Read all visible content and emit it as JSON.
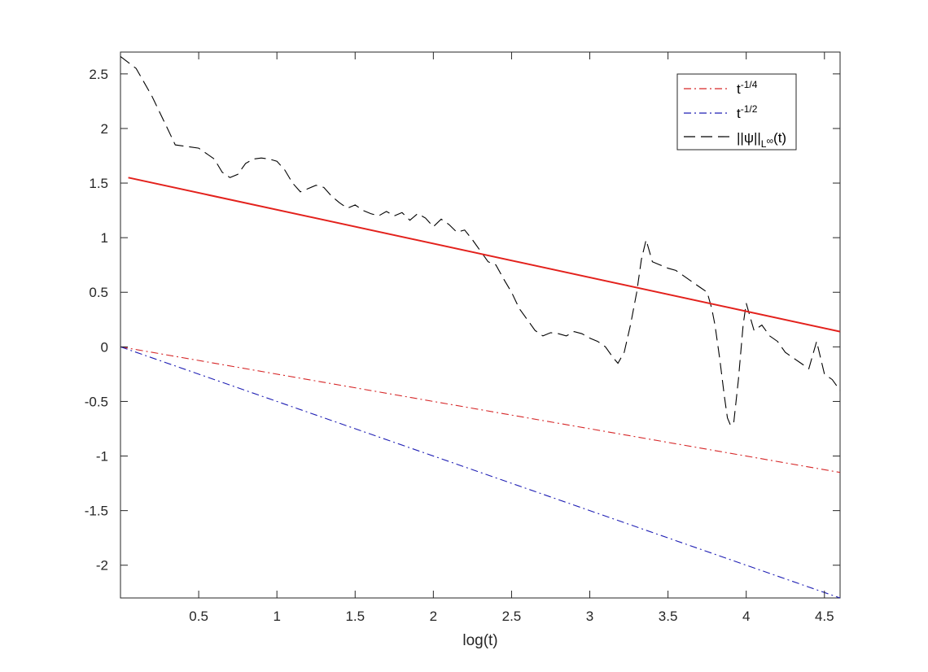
{
  "chart_data": {
    "type": "line",
    "title": "",
    "xlabel": "log(t)",
    "ylabel": "",
    "xlim": [
      0.0,
      4.6
    ],
    "ylim": [
      -2.3,
      2.7
    ],
    "grid": false,
    "legend_position": "top-right",
    "xticks": [
      "0.5",
      "1",
      "1.5",
      "2",
      "2.5",
      "3",
      "3.5",
      "4",
      "4.5"
    ],
    "yticks": [
      "2.5",
      "2",
      "1.5",
      "1",
      "0.5",
      "0",
      "-0.5",
      "-1",
      "-1.5",
      "-2"
    ],
    "legend": [
      {
        "base": "t",
        "sup": "-1/4",
        "color": "#d62728",
        "style": "dash-dot"
      },
      {
        "base": "t",
        "sup": "-1/2",
        "color": "#1f1fb4",
        "style": "dash-dot"
      },
      {
        "base": "||ψ||",
        "sub": "L",
        "sup": "∞",
        "suffix": "(t)",
        "color": "#000000",
        "style": "dashed"
      }
    ],
    "series": [
      {
        "color": "#d62728",
        "style": "dash-dot",
        "x": [
          0.0,
          4.6
        ],
        "y": [
          0.0,
          -1.15
        ]
      },
      {
        "color": "#1f1fb4",
        "style": "dash-dot",
        "x": [
          0.0,
          4.6
        ],
        "y": [
          0.0,
          -2.3
        ]
      },
      {
        "color": "#000000",
        "style": "dashed",
        "x": [
          0.0,
          0.1,
          0.2,
          0.3,
          0.35,
          0.4,
          0.5,
          0.6,
          0.65,
          0.7,
          0.75,
          0.8,
          0.85,
          0.9,
          0.95,
          1.0,
          1.05,
          1.1,
          1.15,
          1.2,
          1.25,
          1.3,
          1.35,
          1.4,
          1.45,
          1.5,
          1.55,
          1.6,
          1.65,
          1.7,
          1.75,
          1.8,
          1.85,
          1.9,
          1.95,
          2.0,
          2.05,
          2.1,
          2.15,
          2.2,
          2.25,
          2.3,
          2.35,
          2.4,
          2.45,
          2.5,
          2.55,
          2.6,
          2.65,
          2.7,
          2.75,
          2.8,
          2.85,
          2.9,
          2.95,
          3.0,
          3.05,
          3.1,
          3.15,
          3.18,
          3.22,
          3.26,
          3.3,
          3.33,
          3.36,
          3.4,
          3.45,
          3.5,
          3.55,
          3.6,
          3.65,
          3.7,
          3.75,
          3.78,
          3.8,
          3.83,
          3.86,
          3.88,
          3.9,
          3.92,
          3.95,
          3.98,
          4.0,
          4.02,
          4.05,
          4.1,
          4.15,
          4.2,
          4.25,
          4.3,
          4.35,
          4.4,
          4.45,
          4.5,
          4.55,
          4.6
        ],
        "y": [
          2.66,
          2.55,
          2.3,
          2.0,
          1.85,
          1.84,
          1.82,
          1.72,
          1.6,
          1.55,
          1.58,
          1.68,
          1.72,
          1.73,
          1.72,
          1.7,
          1.62,
          1.5,
          1.42,
          1.45,
          1.48,
          1.46,
          1.38,
          1.32,
          1.27,
          1.3,
          1.25,
          1.22,
          1.2,
          1.24,
          1.2,
          1.23,
          1.16,
          1.22,
          1.18,
          1.1,
          1.17,
          1.12,
          1.05,
          1.07,
          0.98,
          0.88,
          0.78,
          0.75,
          0.62,
          0.5,
          0.35,
          0.25,
          0.15,
          0.1,
          0.13,
          0.12,
          0.1,
          0.14,
          0.12,
          0.08,
          0.05,
          0.0,
          -0.1,
          -0.15,
          -0.05,
          0.2,
          0.5,
          0.8,
          0.98,
          0.78,
          0.75,
          0.72,
          0.7,
          0.65,
          0.6,
          0.55,
          0.5,
          0.35,
          0.2,
          -0.1,
          -0.45,
          -0.65,
          -0.72,
          -0.7,
          -0.3,
          0.2,
          0.4,
          0.3,
          0.15,
          0.2,
          0.1,
          0.05,
          -0.05,
          -0.1,
          -0.15,
          -0.2,
          0.05,
          -0.25,
          -0.3,
          -0.4
        ]
      },
      {
        "color": "#e3211c",
        "style": "solid",
        "x": [
          0.05,
          4.6
        ],
        "y": [
          1.55,
          0.14
        ]
      }
    ]
  }
}
